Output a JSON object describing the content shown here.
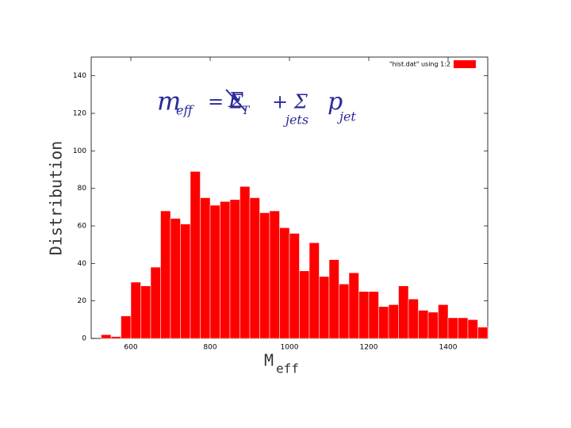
{
  "chart_data": {
    "type": "histogram",
    "xlabel": "M",
    "xlabel_sub": "eff",
    "ylabel": "Distribution",
    "legend": "\"hist.dat\" using 1:2",
    "legend_position": "upper right",
    "color": "#ff0000",
    "bins": [
      525,
      550,
      575,
      600,
      625,
      650,
      675,
      700,
      725,
      750,
      775,
      800,
      825,
      850,
      875,
      900,
      925,
      950,
      975,
      1000,
      1025,
      1050,
      1075,
      1100,
      1125,
      1150,
      1175,
      1200,
      1225,
      1250,
      1275,
      1300,
      1325,
      1350,
      1375,
      1400,
      1425,
      1450,
      1475,
      1500
    ],
    "values": [
      2,
      1,
      12,
      30,
      28,
      38,
      68,
      64,
      61,
      89,
      75,
      71,
      73,
      74,
      81,
      75,
      67,
      68,
      59,
      56,
      36,
      51,
      33,
      42,
      29,
      35,
      25,
      25,
      17,
      18,
      28,
      21,
      15,
      14,
      18,
      11,
      11,
      10,
      6
    ],
    "xlim": [
      500,
      1500
    ],
    "xticks": [
      600,
      800,
      1000,
      1200,
      1400
    ],
    "ylim": [
      0,
      150
    ],
    "yticks": [
      0,
      20,
      40,
      60,
      80,
      100,
      120,
      140
    ],
    "annotation": [
      "m",
      "eff",
      "= Σ",
      "E",
      "T",
      "+ Σ",
      "jets",
      "p",
      "jet"
    ]
  }
}
